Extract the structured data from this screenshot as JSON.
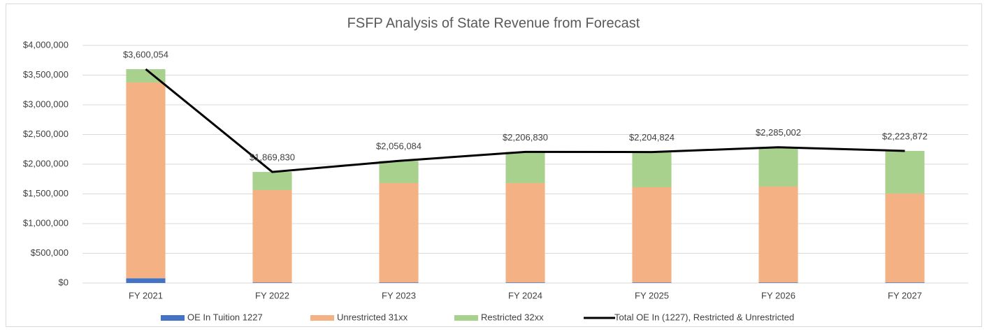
{
  "chart_data": {
    "type": "bar",
    "stacked": true,
    "title": "FSFP Analysis of State Revenue from Forecast",
    "categories": [
      "FY 2021",
      "FY 2022",
      "FY 2023",
      "FY 2024",
      "FY 2025",
      "FY 2026",
      "FY 2027"
    ],
    "series": [
      {
        "name": "OE In Tuition 1227",
        "color": "#4472c4",
        "values": [
          80000,
          10000,
          10000,
          10000,
          10000,
          10000,
          10000
        ]
      },
      {
        "name": "Unrestricted 31xx",
        "color": "#f4b183",
        "values": [
          3296000,
          1555000,
          1672000,
          1672000,
          1602000,
          1614000,
          1496000
        ]
      },
      {
        "name": "Restricted 32xx",
        "color": "#a9d18e",
        "values": [
          224054,
          304830,
          374084,
          524830,
          592824,
          661002,
          717872
        ]
      },
      {
        "name": "Total OE In (1227), Restricted & Unrestricted",
        "color": "#000000",
        "type": "line",
        "values": [
          3600054,
          1869830,
          2056084,
          2206830,
          2204824,
          2285002,
          2223872
        ],
        "value_labels": [
          "$3,600,054",
          "$1,869,830",
          "$2,056,084",
          "$2,206,830",
          "$2,204,824",
          "$2,285,002",
          "$2,223,872"
        ]
      }
    ],
    "ylim": [
      0,
      4000000
    ],
    "yticks": [
      {
        "value": 0,
        "label": "$0"
      },
      {
        "value": 500000,
        "label": "$500,000"
      },
      {
        "value": 1000000,
        "label": "$1,000,000"
      },
      {
        "value": 1500000,
        "label": "$1,500,000"
      },
      {
        "value": 2000000,
        "label": "$2,000,000"
      },
      {
        "value": 2500000,
        "label": "$2,500,000"
      },
      {
        "value": 3000000,
        "label": "$3,000,000"
      },
      {
        "value": 3500000,
        "label": "$3,500,000"
      },
      {
        "value": 4000000,
        "label": "$4,000,000"
      }
    ],
    "grid": true,
    "legend": "bottom"
  }
}
